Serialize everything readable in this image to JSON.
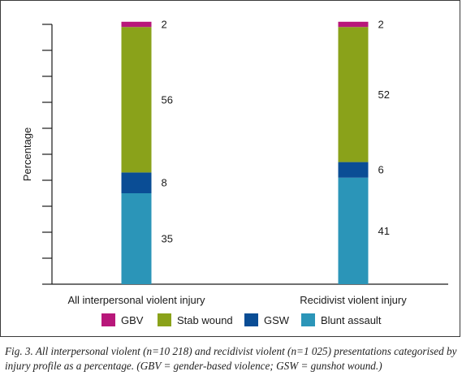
{
  "chart_data": {
    "type": "bar",
    "stacked": true,
    "ylabel": "Percentage",
    "ylim": [
      0,
      100
    ],
    "grid": false,
    "legend_position": "bottom",
    "categories": [
      "All interpersonal violent injury",
      "Recidivist violent injury"
    ],
    "series": [
      {
        "name": "Blunt assault",
        "color": "#2b95b8",
        "values": [
          35,
          41
        ]
      },
      {
        "name": "GSW",
        "color": "#0a4d95",
        "values": [
          8,
          6
        ]
      },
      {
        "name": "Stab wound",
        "color": "#8aa21a",
        "values": [
          56,
          52
        ]
      },
      {
        "name": "GBV",
        "color": "#b8177a",
        "values": [
          2,
          2
        ]
      }
    ],
    "legend_order": [
      "GBV",
      "Stab wound",
      "GSW",
      "Blunt assault"
    ]
  },
  "caption": "Fig. 3. All interpersonal violent (n=10 218) and recidivist violent (n=1 025) presentations categorised by injury profile as a percentage. (GBV = gender-based violence; GSW = gunshot wound.)"
}
